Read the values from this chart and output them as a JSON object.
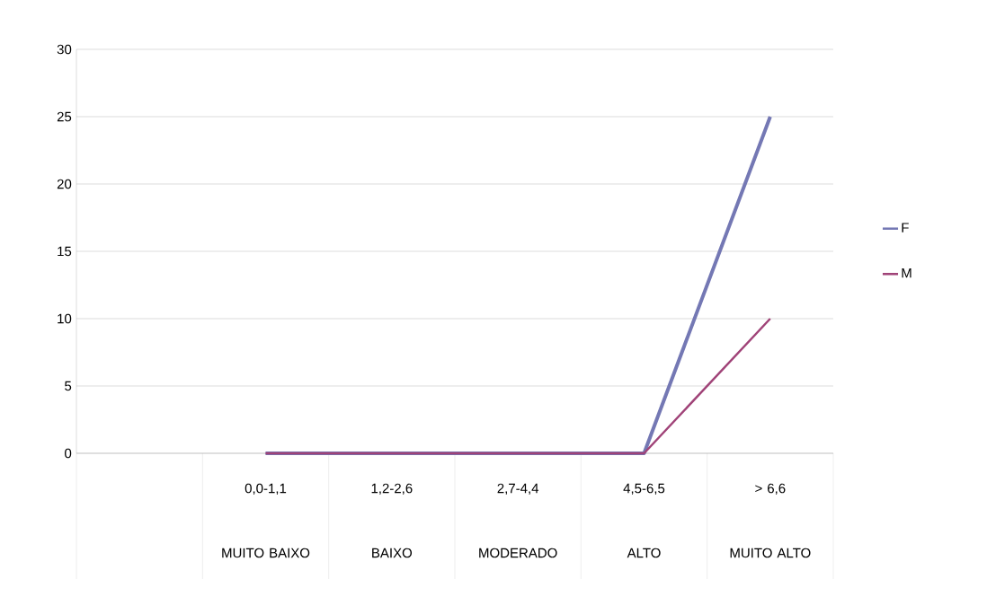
{
  "chart_data": {
    "type": "line",
    "categories": [
      null,
      "0,0-1,1 MUITO BAIXO",
      "1,2-2,6 BAIXO",
      "2,7-4,4 MODERADO",
      "4,5-6,5 ALTO",
      "> 6,6 MUITO ALTO"
    ],
    "series": [
      {
        "name": "F",
        "color": "#7478b4",
        "values": [
          null,
          0,
          0,
          0,
          0,
          25
        ]
      },
      {
        "name": "M",
        "color": "#a04378",
        "values": [
          null,
          0,
          0,
          0,
          0,
          10
        ]
      }
    ],
    "ylim": [
      0,
      30
    ],
    "yticks": [
      0,
      5,
      10,
      15,
      20,
      25,
      30
    ],
    "grid": "y",
    "legend": "right",
    "marker": "none",
    "line_style": "solid"
  }
}
